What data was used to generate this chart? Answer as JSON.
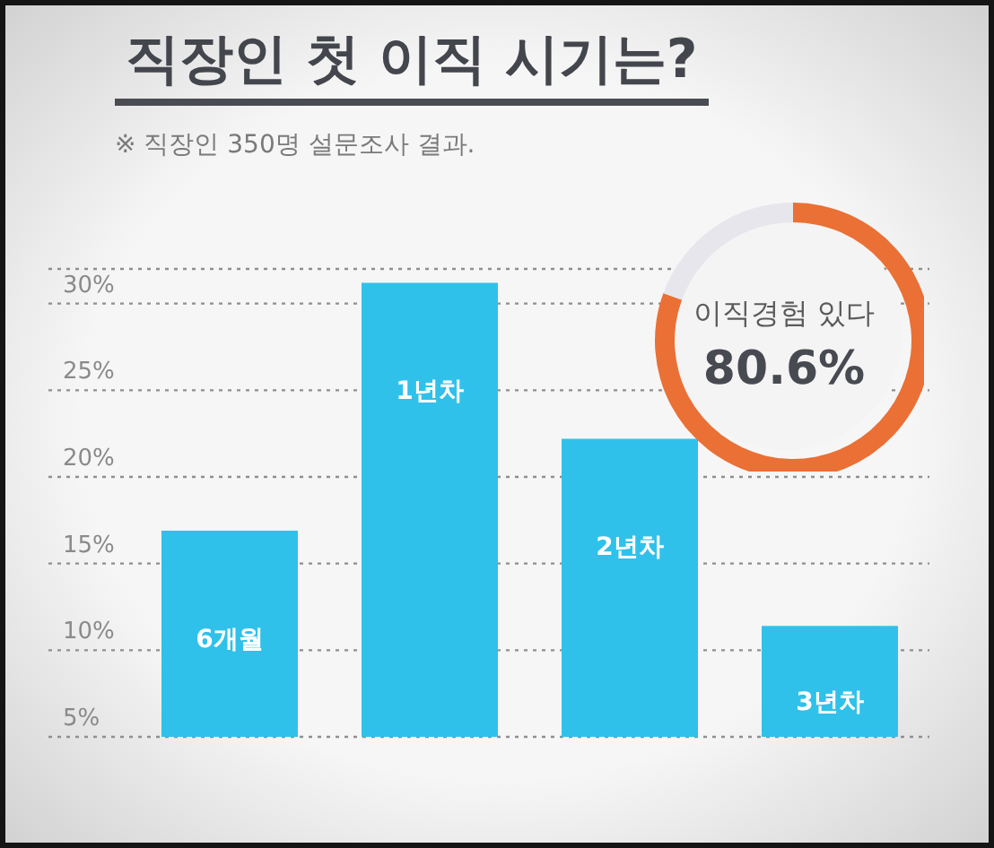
{
  "chart_data": [
    {
      "type": "bar",
      "title": "직장인 첫 이직 시기는?",
      "subtitle": "※ 직장인 350명 설문조사 결과.",
      "categories": [
        "6개월",
        "1년차",
        "2년차",
        "3년차"
      ],
      "values": [
        16.9,
        31.2,
        22.2,
        11.4
      ],
      "color": "#30c1ea",
      "ylim": [
        5,
        32
      ],
      "yticks": [
        {
          "value": 5,
          "label": "5%"
        },
        {
          "value": 10,
          "label": "10%"
        },
        {
          "value": 15,
          "label": "15%"
        },
        {
          "value": 20,
          "label": "20%"
        },
        {
          "value": 25,
          "label": "25%"
        },
        {
          "value": 30,
          "label": "30%"
        }
      ],
      "grid": "y",
      "tick_labels": "y"
    },
    {
      "type": "donut",
      "categories": [
        "이직경험 있다",
        null
      ],
      "values": [
        80.6,
        19.4
      ],
      "colors": [
        "#ea7035",
        "#e6e6ec"
      ],
      "value_labels": [
        "80.6%",
        null
      ]
    }
  ]
}
